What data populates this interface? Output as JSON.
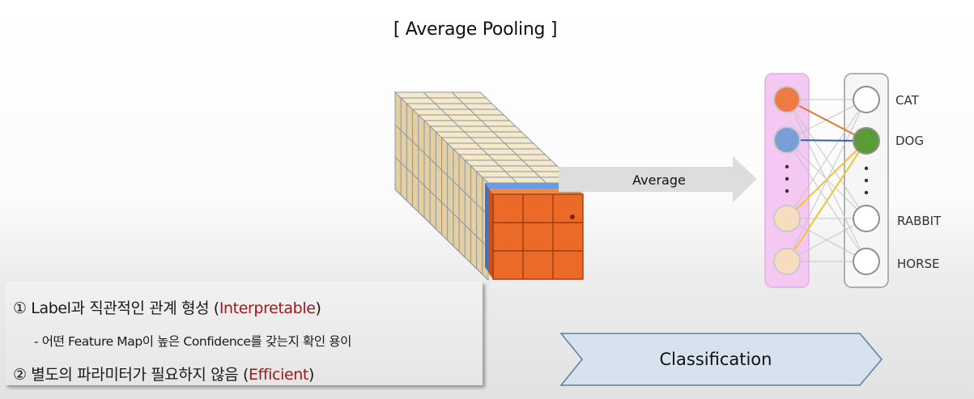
{
  "title": "[ Average Pooling ]",
  "arrow_label": "Average",
  "classes": [
    "CAT",
    "DOG",
    "RABBIT",
    "HORSE"
  ],
  "stage_label": "Classification",
  "notes": {
    "line1": {
      "text": "① Label과 직관적인 관계 형성 (",
      "highlight": "Interpretable",
      "suffix": ")"
    },
    "line2": {
      "text": "- 어떤 Feature Map이 높은 Confidence를 갖는지 확인 용이"
    },
    "line3": {
      "text": "② 별도의 파라미터가 필요하지 않음 (",
      "highlight": "Efficient",
      "suffix": ")"
    }
  },
  "colors": {
    "highlight_text": "#a3161b",
    "orange_node": "#ee7b45",
    "blue_node": "#7a9fd6",
    "peach_node": "#f8dcc0",
    "dog_node": "#5a9d37",
    "feature_map_cells": "#f4e5c6",
    "front_map": "#ec6a28",
    "blue_map": "#4a7fd1",
    "pink_panel": "#f4c8f2",
    "arrow_fill": "#dcdcdc",
    "banner_fill": "#d6e2ee"
  },
  "icons": [
    "ellipsis-vertical-icon"
  ]
}
